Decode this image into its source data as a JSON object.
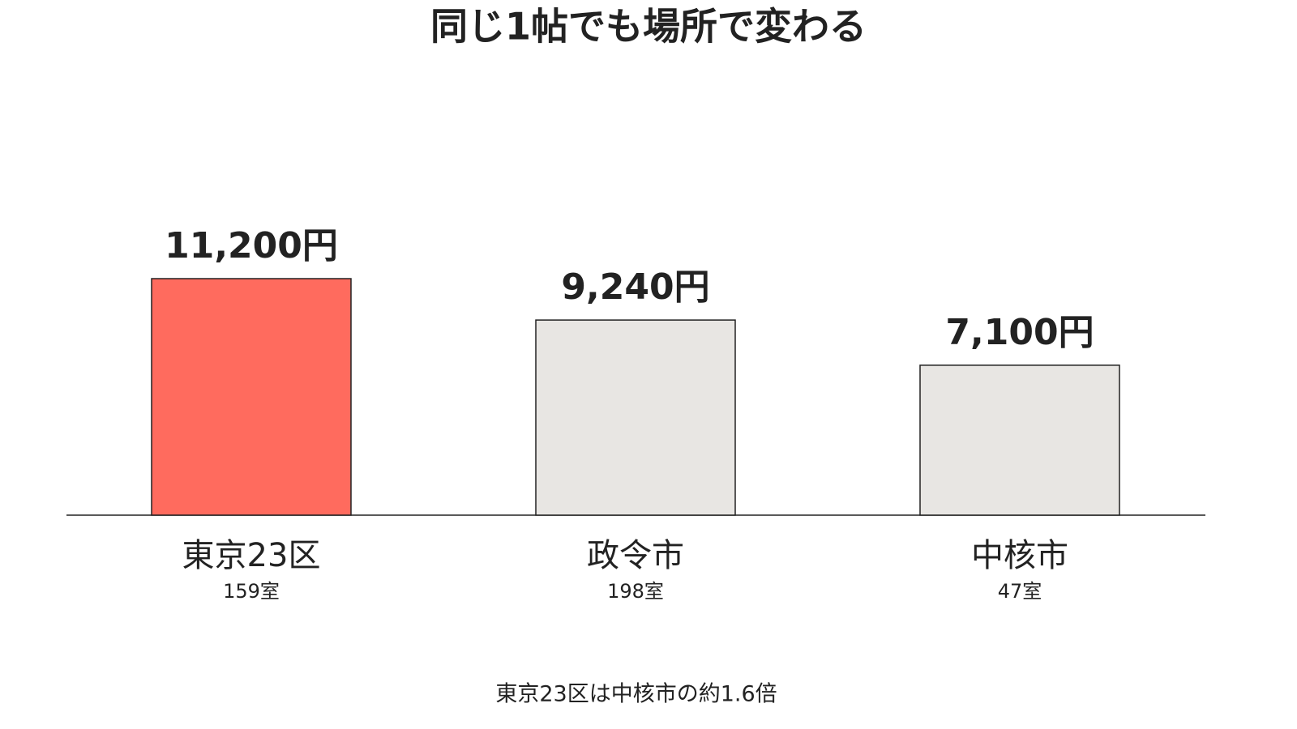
{
  "chart_data": {
    "type": "bar",
    "title": "同じ1帖でも場所で変わる",
    "categories": [
      "東京23区",
      "政令市",
      "中核市"
    ],
    "category_notes": [
      "159室",
      "198室",
      "47室"
    ],
    "values": [
      11200,
      9240,
      7100
    ],
    "value_labels": [
      "11,200円",
      "9,240円",
      "7,100円"
    ],
    "colors": [
      "#ff6b5e",
      "#e8e6e3",
      "#e8e6e3"
    ],
    "annotation": "東京23区は中核市の約1.6倍"
  }
}
